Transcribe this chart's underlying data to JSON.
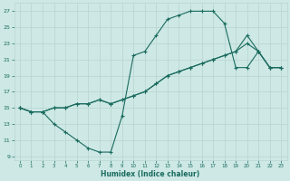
{
  "xlabel": "Humidex (Indice chaleur)",
  "xlim": [
    -0.5,
    23.5
  ],
  "ylim": [
    8.5,
    28
  ],
  "xticks": [
    0,
    1,
    2,
    3,
    4,
    5,
    6,
    7,
    8,
    9,
    10,
    11,
    12,
    13,
    14,
    15,
    16,
    17,
    18,
    19,
    20,
    21,
    22,
    23
  ],
  "yticks": [
    9,
    11,
    13,
    15,
    17,
    19,
    21,
    23,
    25,
    27
  ],
  "bg_color": "#cde8e5",
  "grid_color": "#b8d4d0",
  "line_color": "#1a6b5e",
  "line1_x": [
    0,
    1,
    2,
    3,
    4,
    5,
    6,
    7,
    8,
    9,
    10,
    11,
    12,
    13,
    14,
    15,
    16,
    17,
    18,
    19,
    20,
    21,
    22,
    23
  ],
  "line1_y": [
    15,
    14.5,
    14.5,
    13,
    12,
    11,
    10,
    9.5,
    9.5,
    14,
    21.5,
    22,
    24,
    26,
    26.5,
    27,
    27,
    27,
    25.5,
    20,
    20,
    22,
    20,
    20
  ],
  "line2_x": [
    0,
    1,
    2,
    3,
    4,
    5,
    6,
    7,
    8,
    9,
    10,
    11,
    12,
    13,
    14,
    15,
    16,
    17,
    18,
    19,
    20,
    21,
    22,
    23
  ],
  "line2_y": [
    15,
    14.5,
    14.5,
    15,
    15,
    15.5,
    15.5,
    16,
    15.5,
    16,
    16.5,
    17,
    18,
    19,
    19.5,
    20,
    20.5,
    21,
    21.5,
    22,
    24,
    22,
    20,
    20
  ],
  "line3_x": [
    0,
    1,
    2,
    3,
    4,
    5,
    6,
    7,
    8,
    9,
    10,
    11,
    12,
    13,
    14,
    15,
    16,
    17,
    18,
    19,
    20,
    21,
    22,
    23
  ],
  "line3_y": [
    15,
    14.5,
    14.5,
    15,
    15,
    15.5,
    15.5,
    16,
    15.5,
    16,
    16.5,
    17,
    18,
    19,
    19.5,
    20,
    20.5,
    21,
    21.5,
    22,
    23,
    22,
    20,
    20
  ]
}
